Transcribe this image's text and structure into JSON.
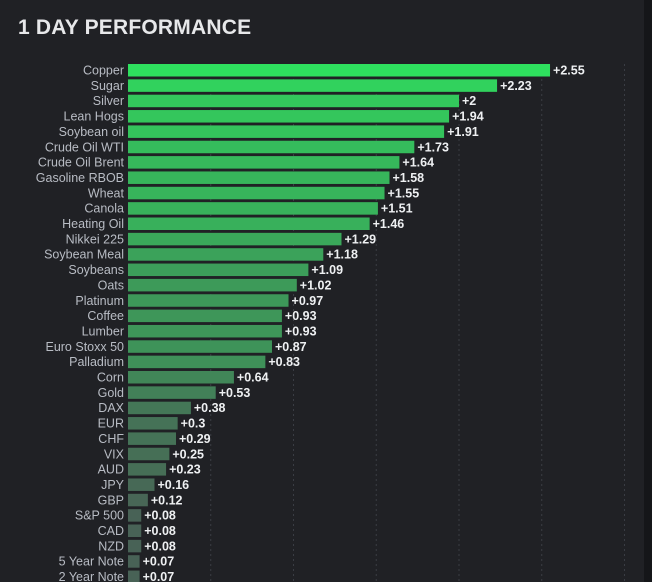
{
  "header": {
    "title": "1 DAY PERFORMANCE"
  },
  "colors": {
    "background": "#202125",
    "bar_high": "#2ee05e",
    "bar_low": "#4a5a55"
  },
  "chart_data": {
    "type": "bar",
    "orientation": "horizontal",
    "title": "1 DAY PERFORMANCE",
    "xlim": [
      0,
      2.8
    ],
    "grid": true,
    "categories": [
      "Copper",
      "Sugar",
      "Silver",
      "Lean Hogs",
      "Soybean oil",
      "Crude Oil WTI",
      "Crude Oil Brent",
      "Gasoline RBOB",
      "Wheat",
      "Canola",
      "Heating Oil",
      "Nikkei 225",
      "Soybean Meal",
      "Soybeans",
      "Oats",
      "Platinum",
      "Coffee",
      "Lumber",
      "Euro Stoxx 50",
      "Palladium",
      "Corn",
      "Gold",
      "DAX",
      "EUR",
      "CHF",
      "VIX",
      "AUD",
      "JPY",
      "GBP",
      "S&P 500",
      "CAD",
      "NZD",
      "5 Year Note",
      "2 Year Note"
    ],
    "values": [
      2.55,
      2.23,
      2,
      1.94,
      1.91,
      1.73,
      1.64,
      1.58,
      1.55,
      1.51,
      1.46,
      1.29,
      1.18,
      1.09,
      1.02,
      0.97,
      0.93,
      0.93,
      0.87,
      0.83,
      0.64,
      0.53,
      0.38,
      0.3,
      0.29,
      0.25,
      0.23,
      0.16,
      0.12,
      0.08,
      0.08,
      0.08,
      0.07,
      0.07
    ],
    "value_labels": [
      "+2.55",
      "+2.23",
      "+2",
      "+1.94",
      "+1.91",
      "+1.73",
      "+1.64",
      "+1.58",
      "+1.55",
      "+1.51",
      "+1.46",
      "+1.29",
      "+1.18",
      "+1.09",
      "+1.02",
      "+0.97",
      "+0.93",
      "+0.93",
      "+0.87",
      "+0.83",
      "+0.64",
      "+0.53",
      "+0.38",
      "+0.3",
      "+0.29",
      "+0.25",
      "+0.23",
      "+0.16",
      "+0.12",
      "+0.08",
      "+0.08",
      "+0.08",
      "+0.07",
      "+0.07"
    ]
  }
}
